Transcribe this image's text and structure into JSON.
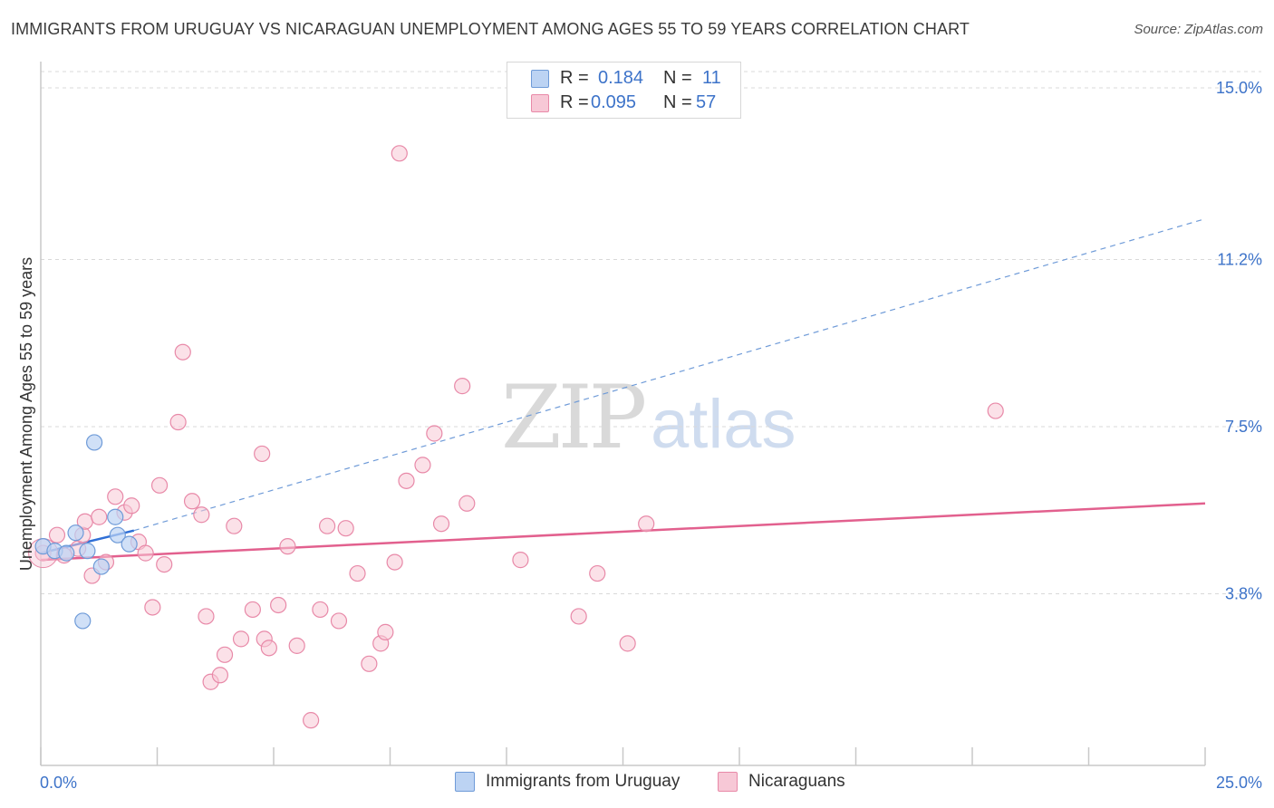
{
  "header": {
    "title": "IMMIGRANTS FROM URUGUAY VS NICARAGUAN UNEMPLOYMENT AMONG AGES 55 TO 59 YEARS CORRELATION CHART",
    "source": "Source: ZipAtlas.com"
  },
  "watermark": {
    "zip": "ZIP",
    "atlas": "atlas"
  },
  "legend_top": {
    "rows": [
      {
        "r_label": "R =",
        "r_value": "0.184",
        "n_label": "N =",
        "n_value": "11"
      },
      {
        "r_label": "R =",
        "r_value": "0.095",
        "n_label": "N =",
        "n_value": "57"
      }
    ]
  },
  "colors": {
    "uruguay_fill": "#bcd3f3",
    "uruguay_stroke": "#6f9bd8",
    "uruguay_line": "#2f6fd6",
    "nicaragua_fill": "#f7c8d6",
    "nicaragua_stroke": "#e889a8",
    "nicaragua_line": "#e2608e",
    "tick_label": "#3d73c9",
    "grid": "#d9d9d9"
  },
  "chart_data": {
    "type": "scatter",
    "title": "IMMIGRANTS FROM URUGUAY VS NICARAGUAN UNEMPLOYMENT AMONG AGES 55 TO 59 YEARS CORRELATION CHART",
    "xlabel": "",
    "ylabel": "Unemployment Among Ages 55 to 59 years",
    "xlim": [
      0,
      25
    ],
    "ylim": [
      0,
      15.5
    ],
    "x_tick_labels": [
      "0.0%",
      "25.0%"
    ],
    "y_ticks": [
      3.8,
      7.5,
      11.2,
      15.0
    ],
    "y_tick_labels": [
      "3.8%",
      "7.5%",
      "11.2%",
      "15.0%"
    ],
    "grid": true,
    "legend_position": "bottom",
    "series": [
      {
        "name": "Immigrants from Uruguay",
        "points": [
          [
            0.05,
            4.85
          ],
          [
            0.3,
            4.75
          ],
          [
            0.55,
            4.7
          ],
          [
            0.75,
            5.15
          ],
          [
            1.0,
            4.75
          ],
          [
            1.15,
            7.15
          ],
          [
            0.9,
            3.2
          ],
          [
            1.3,
            4.4
          ],
          [
            1.6,
            5.5
          ],
          [
            1.65,
            5.1
          ],
          [
            1.9,
            4.9
          ]
        ],
        "trend": {
          "x": [
            0.0,
            2.0
          ],
          "y": [
            4.7,
            5.2
          ]
        },
        "trend_extended": {
          "x": [
            2.0,
            25.0
          ],
          "y": [
            5.2,
            12.1
          ]
        }
      },
      {
        "name": "Nicaraguans",
        "points": [
          [
            0.05,
            4.7
          ],
          [
            0.35,
            5.1
          ],
          [
            0.5,
            4.65
          ],
          [
            0.8,
            4.8
          ],
          [
            0.9,
            5.1
          ],
          [
            0.95,
            5.4
          ],
          [
            1.1,
            4.2
          ],
          [
            1.25,
            5.5
          ],
          [
            1.4,
            4.5
          ],
          [
            1.6,
            5.95
          ],
          [
            1.8,
            5.6
          ],
          [
            1.95,
            5.75
          ],
          [
            2.1,
            4.95
          ],
          [
            2.25,
            4.7
          ],
          [
            2.4,
            3.5
          ],
          [
            2.55,
            6.2
          ],
          [
            2.65,
            4.45
          ],
          [
            2.95,
            7.6
          ],
          [
            3.05,
            9.15
          ],
          [
            3.25,
            5.85
          ],
          [
            3.45,
            5.55
          ],
          [
            3.55,
            3.3
          ],
          [
            3.65,
            1.85
          ],
          [
            3.85,
            2.0
          ],
          [
            3.95,
            2.45
          ],
          [
            4.15,
            5.3
          ],
          [
            4.3,
            2.8
          ],
          [
            4.55,
            3.45
          ],
          [
            4.75,
            6.9
          ],
          [
            4.8,
            2.8
          ],
          [
            4.9,
            2.6
          ],
          [
            5.1,
            3.55
          ],
          [
            5.3,
            4.85
          ],
          [
            5.5,
            2.65
          ],
          [
            5.8,
            1.0
          ],
          [
            6.0,
            3.45
          ],
          [
            6.15,
            5.3
          ],
          [
            6.4,
            3.2
          ],
          [
            6.55,
            5.25
          ],
          [
            6.8,
            4.25
          ],
          [
            7.05,
            2.25
          ],
          [
            7.3,
            2.7
          ],
          [
            7.4,
            2.95
          ],
          [
            7.6,
            4.5
          ],
          [
            7.7,
            13.55
          ],
          [
            7.85,
            6.3
          ],
          [
            8.2,
            6.65
          ],
          [
            8.45,
            7.35
          ],
          [
            8.6,
            5.35
          ],
          [
            9.05,
            8.4
          ],
          [
            9.15,
            5.8
          ],
          [
            10.3,
            4.55
          ],
          [
            11.55,
            3.3
          ],
          [
            11.95,
            4.25
          ],
          [
            12.6,
            2.7
          ],
          [
            13.0,
            5.35
          ],
          [
            20.5,
            7.85
          ]
        ],
        "trend": {
          "x": [
            0.0,
            25.0
          ],
          "y": [
            4.55,
            5.8
          ]
        }
      }
    ]
  },
  "legend_bottom": {
    "items": [
      {
        "label": "Immigrants from Uruguay"
      },
      {
        "label": "Nicaraguans"
      }
    ]
  }
}
